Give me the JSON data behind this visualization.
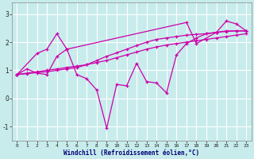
{
  "xlabel": "Windchill (Refroidissement éolien,°C)",
  "background_color": "#c8ecec",
  "grid_color": "#ffffff",
  "line_color": "#cc00aa",
  "xlim": [
    -0.5,
    23.5
  ],
  "ylim": [
    -1.5,
    3.4
  ],
  "xticks": [
    0,
    1,
    2,
    3,
    4,
    5,
    6,
    7,
    8,
    9,
    10,
    11,
    12,
    13,
    14,
    15,
    16,
    17,
    18,
    19,
    20,
    21,
    22,
    23
  ],
  "yticks": [
    -1,
    0,
    1,
    2,
    3
  ],
  "line1_x": [
    0,
    1,
    2,
    3,
    4,
    5,
    6,
    7,
    8,
    9,
    10,
    11,
    12,
    13,
    14,
    15,
    16,
    17,
    18,
    19,
    20,
    21,
    22,
    23
  ],
  "line1_y": [
    0.85,
    1.05,
    0.9,
    0.85,
    1.5,
    1.75,
    0.85,
    0.7,
    0.3,
    -1.05,
    0.5,
    0.45,
    1.25,
    0.6,
    0.55,
    0.2,
    1.55,
    1.95,
    2.15,
    2.3,
    2.35,
    2.4,
    2.4,
    2.4
  ],
  "line2_x": [
    0,
    2,
    3,
    4,
    5,
    17,
    18,
    20,
    21,
    22,
    23
  ],
  "line2_y": [
    0.85,
    1.6,
    1.75,
    2.3,
    1.75,
    2.7,
    1.95,
    2.35,
    2.75,
    2.65,
    2.4
  ],
  "line3_x": [
    0,
    1,
    2,
    3,
    4,
    5,
    6,
    7,
    8,
    9,
    10,
    11,
    12,
    13,
    14,
    15,
    16,
    17,
    18,
    19,
    20,
    21,
    22,
    23
  ],
  "line3_y": [
    0.85,
    0.88,
    0.92,
    0.95,
    1.0,
    1.05,
    1.1,
    1.2,
    1.35,
    1.5,
    1.62,
    1.75,
    1.88,
    2.0,
    2.1,
    2.15,
    2.2,
    2.25,
    2.28,
    2.3,
    2.35,
    2.38,
    2.4,
    2.4
  ],
  "line4_x": [
    0,
    1,
    2,
    3,
    4,
    5,
    6,
    7,
    8,
    9,
    10,
    11,
    12,
    13,
    14,
    15,
    16,
    17,
    18,
    19,
    20,
    21,
    22,
    23
  ],
  "line4_y": [
    0.85,
    0.9,
    0.95,
    1.0,
    1.05,
    1.1,
    1.15,
    1.2,
    1.28,
    1.35,
    1.45,
    1.55,
    1.65,
    1.75,
    1.83,
    1.9,
    1.95,
    2.0,
    2.05,
    2.1,
    2.15,
    2.2,
    2.25,
    2.3
  ]
}
